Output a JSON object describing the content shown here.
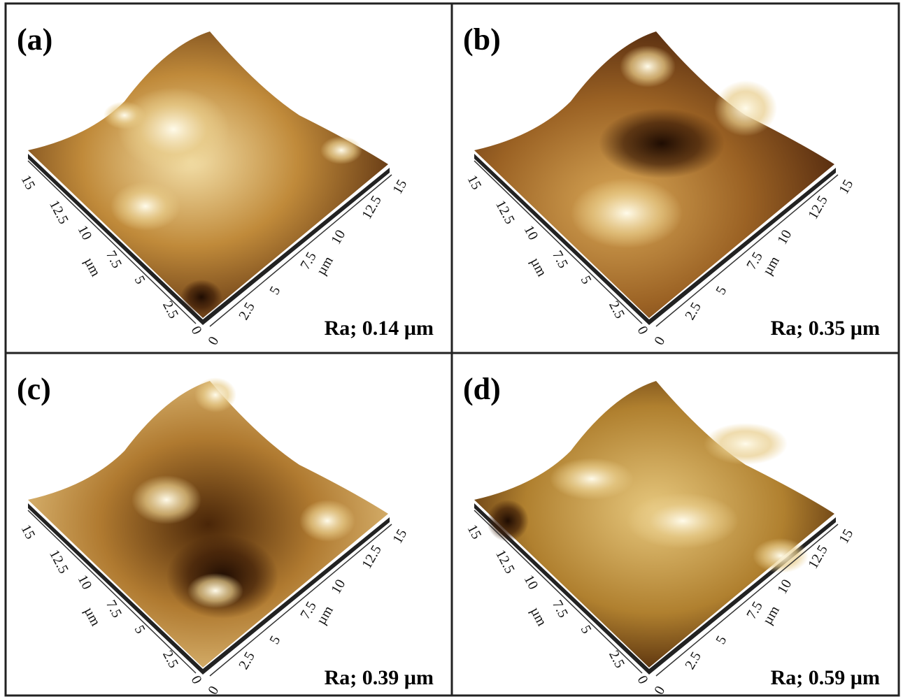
{
  "panels": [
    {
      "label": "(a)",
      "roughness": "Ra; 0.14 µm"
    },
    {
      "label": "(b)",
      "roughness": "Ra; 0.35 µm"
    },
    {
      "label": "(c)",
      "roughness": "Ra; 0.39 µm"
    },
    {
      "label": "(d)",
      "roughness": "Ra; 0.59 µm"
    }
  ],
  "axes": {
    "left_ticks": [
      "15",
      "12.5",
      "10",
      "7.5",
      "5",
      "2.5",
      "0"
    ],
    "right_ticks": [
      "0",
      "2.5",
      "5",
      "7.5",
      "10",
      "12.5",
      "15"
    ],
    "unit": "µm"
  }
}
